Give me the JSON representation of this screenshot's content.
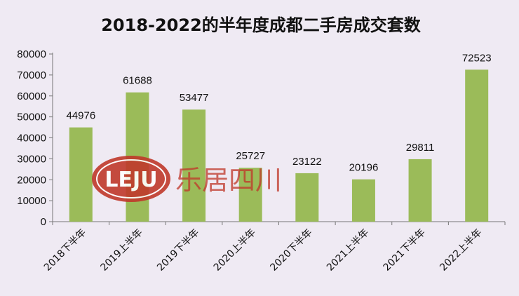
{
  "chart_data": {
    "type": "bar",
    "title": "2018-2022的半年度成都二手房成交套数",
    "categories": [
      "2018下半年",
      "2019上半年",
      "2019下半年",
      "2020上半年",
      "2020下半年",
      "2021上半年",
      "2021下半年",
      "2022上半年"
    ],
    "values": [
      44976,
      61688,
      53477,
      25727,
      23122,
      20196,
      29811,
      72523
    ],
    "yticks": [
      0,
      10000,
      20000,
      30000,
      40000,
      50000,
      60000,
      70000,
      80000
    ],
    "ylim": [
      0,
      80000
    ],
    "bar_color": "#9bbb59",
    "background": "#efeaf3",
    "grid": false
  },
  "watermark": {
    "logo_text": "LEJU",
    "text": "乐居四川",
    "color": "#c0392b"
  }
}
